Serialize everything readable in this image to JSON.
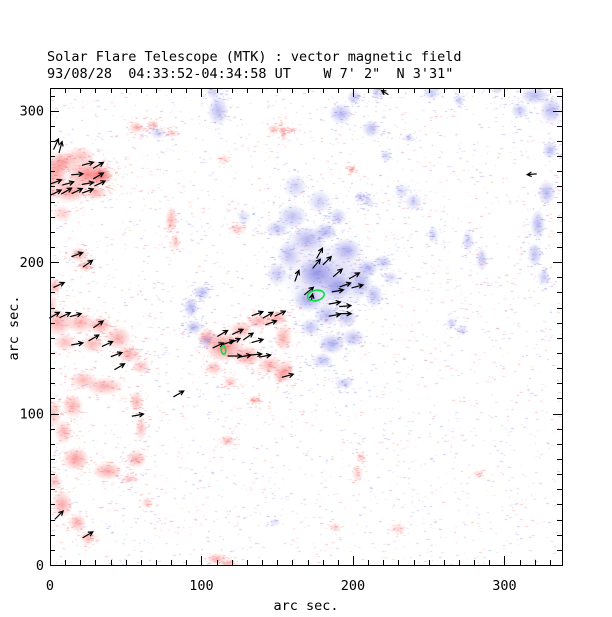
{
  "header": {
    "title": "Solar Flare Telescope (MTK) : vector magnetic field",
    "subtitle": "93/08/28  04:33:52-04:34:58 UT    W 7' 2\"  N 3'31\""
  },
  "axes": {
    "xlabel": "arc sec.",
    "ylabel": "arc sec.",
    "x_range": [
      0,
      338
    ],
    "y_range": [
      0,
      315
    ],
    "x_major_ticks": [
      0,
      100,
      200,
      300
    ],
    "y_major_ticks": [
      0,
      100,
      200,
      300
    ],
    "x_tick_labels": [
      "0",
      "100",
      "200",
      "300"
    ],
    "y_tick_labels": [
      "0",
      "100",
      "200",
      "300"
    ],
    "minor_step": 10,
    "grid": false
  },
  "colors": {
    "positive_polarity": "#f55f5f",
    "negative_polarity": "#7474e0",
    "contour": "#11dd44",
    "arrow": "#000000",
    "axis": "#000000",
    "background": "#ffffff"
  },
  "chart_data": {
    "type": "heatmap",
    "description": "Vector magnetogram: red = positive polarity, blue = negative polarity, arrows = transverse field vectors, green = flare-kernel contours. Units: arc seconds.",
    "title": "Solar Flare Telescope (MTK) : vector magnetic field",
    "xlabel": "arc sec.",
    "ylabel": "arc sec.",
    "xlim": [
      0,
      338
    ],
    "ylim": [
      0,
      315
    ],
    "red_regions": [
      [
        10,
        266,
        9,
        7,
        0.5
      ],
      [
        25,
        258,
        15,
        10,
        0.7
      ],
      [
        34,
        257,
        8,
        6,
        0.8
      ],
      [
        13,
        247,
        12,
        8,
        0.6
      ],
      [
        5,
        261,
        7,
        13,
        0.55
      ],
      [
        20,
        270,
        10,
        6,
        0.4
      ],
      [
        30,
        246,
        8,
        5,
        0.5
      ],
      [
        8,
        232,
        7,
        6,
        0.3
      ],
      [
        0,
        254,
        5,
        18,
        0.5
      ],
      [
        57,
        289,
        5,
        4,
        0.45
      ],
      [
        68,
        291,
        4,
        3,
        0.4
      ],
      [
        80,
        285,
        4,
        2.5,
        0.35
      ],
      [
        148,
        288,
        4,
        3,
        0.4
      ],
      [
        154,
        285,
        2,
        6,
        0.4
      ],
      [
        160,
        287,
        3,
        2,
        0.3
      ],
      [
        115,
        268,
        4,
        3,
        0.25
      ],
      [
        199,
        261,
        3,
        3,
        0.35
      ],
      [
        80,
        228,
        4,
        9,
        0.45
      ],
      [
        83,
        213,
        3,
        5,
        0.4
      ],
      [
        124,
        222,
        6,
        4,
        0.3
      ],
      [
        19,
        205,
        6,
        5,
        0.5
      ],
      [
        24,
        198,
        4,
        4,
        0.45
      ],
      [
        3,
        184,
        5,
        6,
        0.45
      ],
      [
        5,
        160,
        10,
        9,
        0.55
      ],
      [
        20,
        160,
        10,
        7,
        0.5
      ],
      [
        33,
        158,
        8,
        6,
        0.55
      ],
      [
        45,
        150,
        9,
        8,
        0.5
      ],
      [
        28,
        146,
        8,
        6,
        0.45
      ],
      [
        10,
        147,
        8,
        6,
        0.4
      ],
      [
        0,
        171,
        5,
        8,
        0.4
      ],
      [
        52,
        139,
        8,
        6,
        0.5
      ],
      [
        60,
        131,
        6,
        5,
        0.4
      ],
      [
        36,
        118,
        13,
        6,
        0.5
      ],
      [
        22,
        122,
        9,
        6,
        0.45
      ],
      [
        15,
        105,
        7,
        8,
        0.5
      ],
      [
        57,
        108,
        5,
        7,
        0.45
      ],
      [
        60,
        90,
        4,
        8,
        0.4
      ],
      [
        57,
        70,
        7,
        6,
        0.5
      ],
      [
        38,
        62,
        10,
        6,
        0.55
      ],
      [
        17,
        70,
        9,
        8,
        0.6
      ],
      [
        9,
        88,
        6,
        8,
        0.45
      ],
      [
        2,
        100,
        6,
        10,
        0.4
      ],
      [
        115,
        144,
        13,
        10,
        0.75
      ],
      [
        104,
        150,
        7,
        6,
        0.5
      ],
      [
        126,
        155,
        8,
        6,
        0.5
      ],
      [
        138,
        161,
        9,
        5,
        0.5
      ],
      [
        150,
        163,
        7,
        5,
        0.5
      ],
      [
        130,
        138,
        10,
        7,
        0.6
      ],
      [
        145,
        132,
        8,
        6,
        0.5
      ],
      [
        154,
        150,
        6,
        9,
        0.5
      ],
      [
        156,
        128,
        5,
        8,
        0.5
      ],
      [
        108,
        130,
        6,
        5,
        0.4
      ],
      [
        119,
        121,
        5,
        4,
        0.35
      ],
      [
        152,
        126,
        5,
        7,
        0.45
      ],
      [
        135,
        109,
        4,
        3,
        0.4
      ],
      [
        117,
        82,
        5,
        4,
        0.4
      ],
      [
        8,
        40,
        7,
        9,
        0.55
      ],
      [
        18,
        28,
        6,
        6,
        0.5
      ],
      [
        25,
        18,
        5,
        5,
        0.45
      ],
      [
        3,
        55,
        5,
        6,
        0.4
      ],
      [
        52,
        57,
        5,
        3,
        0.35
      ],
      [
        64,
        41,
        4,
        4,
        0.3
      ],
      [
        110,
        4,
        7,
        4,
        0.5
      ],
      [
        118,
        1,
        5,
        3,
        0.45
      ],
      [
        203,
        60,
        4,
        5,
        0.3
      ],
      [
        205,
        71,
        3,
        4,
        0.28
      ],
      [
        230,
        24,
        5,
        4,
        0.3
      ],
      [
        188,
        25,
        4,
        3,
        0.28
      ],
      [
        283,
        60,
        3,
        2,
        0.25
      ]
    ],
    "blue_regions": [
      [
        183,
        190,
        30,
        24,
        0.35
      ],
      [
        170,
        215,
        12,
        9,
        0.55
      ],
      [
        182,
        220,
        8,
        6,
        0.5
      ],
      [
        196,
        208,
        10,
        8,
        0.55
      ],
      [
        176,
        193,
        12,
        10,
        0.65
      ],
      [
        190,
        184,
        10,
        8,
        0.6
      ],
      [
        205,
        186,
        8,
        10,
        0.5
      ],
      [
        170,
        175,
        10,
        8,
        0.55
      ],
      [
        183,
        165,
        9,
        7,
        0.5
      ],
      [
        196,
        163,
        7,
        6,
        0.45
      ],
      [
        172,
        157,
        7,
        6,
        0.45
      ],
      [
        210,
        196,
        7,
        6,
        0.5
      ],
      [
        214,
        178,
        6,
        8,
        0.45
      ],
      [
        160,
        230,
        10,
        8,
        0.45
      ],
      [
        150,
        222,
        8,
        6,
        0.4
      ],
      [
        158,
        205,
        8,
        10,
        0.45
      ],
      [
        150,
        192,
        7,
        8,
        0.4
      ],
      [
        200,
        150,
        8,
        6,
        0.45
      ],
      [
        186,
        146,
        9,
        7,
        0.55
      ],
      [
        180,
        135,
        7,
        5,
        0.45
      ],
      [
        192,
        120,
        4,
        4,
        0.3
      ],
      [
        220,
        200,
        6,
        5,
        0.4
      ],
      [
        225,
        190,
        5,
        4,
        0.35
      ],
      [
        162,
        250,
        8,
        8,
        0.35
      ],
      [
        128,
        230,
        5,
        5,
        0.25
      ],
      [
        178,
        240,
        8,
        8,
        0.35
      ],
      [
        190,
        230,
        6,
        6,
        0.4
      ],
      [
        100,
        180,
        6,
        5,
        0.45
      ],
      [
        93,
        170,
        5,
        7,
        0.5
      ],
      [
        95,
        157,
        6,
        5,
        0.45
      ],
      [
        103,
        148,
        5,
        4,
        0.4
      ],
      [
        111,
        300,
        7,
        10,
        0.5
      ],
      [
        108,
        312,
        5,
        5,
        0.35
      ],
      [
        71,
        285,
        5,
        4,
        0.35
      ],
      [
        192,
        298,
        8,
        7,
        0.5
      ],
      [
        201,
        309,
        5,
        5,
        0.4
      ],
      [
        216,
        312,
        4,
        4,
        0.35
      ],
      [
        252,
        312,
        6,
        5,
        0.4
      ],
      [
        270,
        307,
        4,
        4,
        0.35
      ],
      [
        212,
        288,
        6,
        6,
        0.45
      ],
      [
        237,
        282,
        4,
        3,
        0.3
      ],
      [
        320,
        310,
        10,
        6,
        0.5
      ],
      [
        331,
        300,
        8,
        9,
        0.5
      ],
      [
        310,
        300,
        6,
        5,
        0.4
      ],
      [
        295,
        315,
        5,
        4,
        0.35
      ],
      [
        330,
        274,
        5,
        6,
        0.45
      ],
      [
        328,
        246,
        6,
        8,
        0.5
      ],
      [
        322,
        225,
        5,
        10,
        0.5
      ],
      [
        320,
        205,
        5,
        8,
        0.45
      ],
      [
        326,
        190,
        4,
        6,
        0.4
      ],
      [
        240,
        240,
        6,
        6,
        0.35
      ],
      [
        232,
        247,
        5,
        5,
        0.3
      ],
      [
        253,
        218,
        4,
        6,
        0.3
      ],
      [
        276,
        214,
        4,
        7,
        0.35
      ],
      [
        285,
        202,
        4,
        8,
        0.4
      ],
      [
        222,
        270,
        4,
        4,
        0.3
      ],
      [
        210,
        240,
        4,
        4,
        0.3
      ],
      [
        265,
        160,
        4,
        4,
        0.3
      ],
      [
        205,
        243,
        4,
        4,
        0.35
      ],
      [
        196,
        120,
        4,
        4,
        0.3
      ],
      [
        272,
        155,
        4,
        4,
        0.28
      ],
      [
        148,
        28,
        4,
        3,
        0.22
      ]
    ],
    "arrows": [
      [
        4,
        278,
        65
      ],
      [
        7,
        276,
        75
      ],
      [
        25,
        265,
        15
      ],
      [
        32,
        264,
        30
      ],
      [
        18,
        258,
        5
      ],
      [
        32,
        257,
        30
      ],
      [
        4,
        253,
        20
      ],
      [
        12,
        252,
        15
      ],
      [
        25,
        252,
        10
      ],
      [
        33,
        252,
        25
      ],
      [
        4,
        246,
        25
      ],
      [
        11,
        247,
        30
      ],
      [
        18,
        247,
        25
      ],
      [
        25,
        247,
        20
      ],
      [
        18,
        205,
        20
      ],
      [
        25,
        199,
        35
      ],
      [
        6,
        185,
        25
      ],
      [
        3,
        165,
        30
      ],
      [
        10,
        165,
        25
      ],
      [
        17,
        165,
        15
      ],
      [
        32,
        159,
        35
      ],
      [
        29,
        150,
        30
      ],
      [
        18,
        146,
        10
      ],
      [
        38,
        146,
        25
      ],
      [
        44,
        139,
        20
      ],
      [
        46,
        131,
        30
      ],
      [
        58,
        99,
        10
      ],
      [
        6,
        33,
        45
      ],
      [
        25,
        20,
        30
      ],
      [
        85,
        113,
        30
      ],
      [
        111,
        145,
        25
      ],
      [
        114,
        153,
        30
      ],
      [
        118,
        147,
        20
      ],
      [
        124,
        154,
        25
      ],
      [
        131,
        151,
        35
      ],
      [
        122,
        148,
        25
      ],
      [
        137,
        148,
        15
      ],
      [
        122,
        138,
        0,
        9
      ],
      [
        129,
        138,
        10
      ],
      [
        136,
        139,
        5
      ],
      [
        142,
        138,
        10
      ],
      [
        137,
        166,
        20
      ],
      [
        144,
        165,
        30
      ],
      [
        152,
        166,
        25
      ],
      [
        146,
        160,
        20
      ],
      [
        157,
        125,
        15
      ],
      [
        178,
        206,
        60
      ],
      [
        183,
        201,
        45
      ],
      [
        176,
        199,
        50
      ],
      [
        163,
        191,
        70
      ],
      [
        190,
        193,
        40
      ],
      [
        201,
        191,
        30
      ],
      [
        195,
        185,
        20
      ],
      [
        203,
        184,
        15
      ],
      [
        190,
        181,
        10
      ],
      [
        171,
        181,
        40
      ],
      [
        188,
        173,
        10
      ],
      [
        195,
        171,
        5
      ],
      [
        188,
        165,
        10
      ],
      [
        195,
        166,
        0
      ],
      [
        173,
        177,
        80,
        4
      ],
      [
        221,
        312,
        150,
        5
      ],
      [
        318,
        258,
        185,
        6
      ]
    ],
    "contours": [
      {
        "x": 175.5,
        "y": 178,
        "rx": 5.6,
        "ry": 3.4,
        "rot": -12
      },
      {
        "x": 114.5,
        "y": 142,
        "rx": 1.5,
        "ry": 2.8,
        "rot": -5
      }
    ]
  }
}
